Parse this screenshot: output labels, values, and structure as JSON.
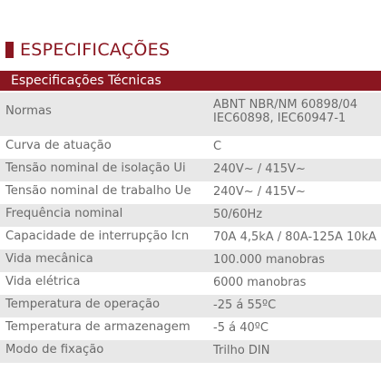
{
  "page": {
    "title": "ESPECIFICAÇÕES",
    "section_header": "Especificações Técnicas"
  },
  "colors": {
    "accent": "#8a1620",
    "row_alt": "#e8e8e8",
    "text": "#6a6a6a"
  },
  "specs": [
    {
      "label": "Normas",
      "value_lines": [
        "ABNT NBR/NM 60898/04",
        "IEC60898, IEC60947-1"
      ]
    },
    {
      "label": "Curva de atuação",
      "value_lines": [
        "C"
      ]
    },
    {
      "label": "Tensão nominal de isolação Ui",
      "value_lines": [
        "240V~ / 415V~"
      ]
    },
    {
      "label": "Tensão nominal de trabalho Ue",
      "value_lines": [
        "240V~ / 415V~"
      ]
    },
    {
      "label": "Frequência nominal",
      "value_lines": [
        "50/60Hz"
      ]
    },
    {
      "label": "Capacidade de interrupção Icn",
      "value_lines": [
        "70A 4,5kA / 80A-125A 10kA"
      ]
    },
    {
      "label": "Vida mecânica",
      "value_lines": [
        "100.000 manobras"
      ]
    },
    {
      "label": "Vida elétrica",
      "value_lines": [
        "6000 manobras"
      ]
    },
    {
      "label": "Temperatura de operação",
      "value_lines": [
        "-25 á 55ºC"
      ]
    },
    {
      "label": "Temperatura de armazenagem",
      "value_lines": [
        "-5 á 40ºC"
      ]
    },
    {
      "label": "Modo de fixação",
      "value_lines": [
        "Trilho DIN"
      ]
    }
  ]
}
